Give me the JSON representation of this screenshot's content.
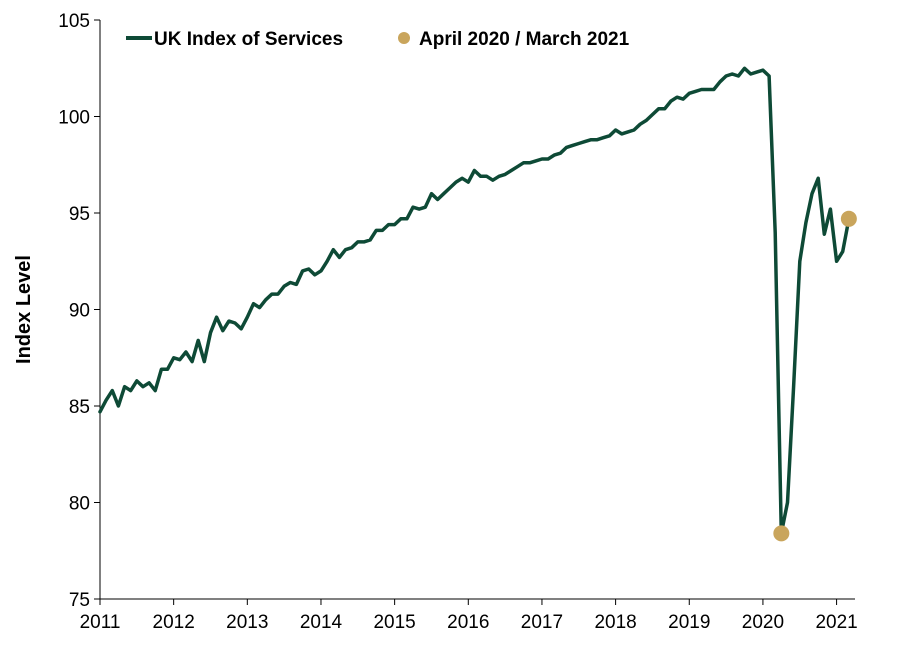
{
  "chart_data": {
    "type": "line",
    "ylabel": "Index Level",
    "xlabel": "",
    "ylim": [
      75,
      105
    ],
    "yticks": [
      75,
      80,
      85,
      90,
      95,
      100,
      105
    ],
    "xlim": [
      2011,
      2021.25
    ],
    "xticks": [
      "2011",
      "2012",
      "2013",
      "2014",
      "2015",
      "2016",
      "2017",
      "2018",
      "2019",
      "2020",
      "2021"
    ],
    "grid": false,
    "legend_position": "top",
    "colors": {
      "series": "#0e4a36",
      "highlight": "#c9a55c"
    },
    "series": [
      {
        "name": "UK Index of Services",
        "x_start": "2011-01",
        "frequency": "monthly",
        "values": [
          84.7,
          85.3,
          85.8,
          85.0,
          86.0,
          85.8,
          86.3,
          86.0,
          86.2,
          85.8,
          86.9,
          86.9,
          87.5,
          87.4,
          87.8,
          87.3,
          88.4,
          87.3,
          88.8,
          89.6,
          88.9,
          89.4,
          89.3,
          89.0,
          89.6,
          90.3,
          90.1,
          90.5,
          90.8,
          90.8,
          91.2,
          91.4,
          91.3,
          92.0,
          92.1,
          91.8,
          92.0,
          92.5,
          93.1,
          92.7,
          93.1,
          93.2,
          93.5,
          93.5,
          93.6,
          94.1,
          94.1,
          94.4,
          94.4,
          94.7,
          94.7,
          95.3,
          95.2,
          95.3,
          96.0,
          95.7,
          96.0,
          96.3,
          96.6,
          96.8,
          96.6,
          97.2,
          96.9,
          96.9,
          96.7,
          96.9,
          97.0,
          97.2,
          97.4,
          97.6,
          97.6,
          97.7,
          97.8,
          97.8,
          98.0,
          98.1,
          98.4,
          98.5,
          98.6,
          98.7,
          98.8,
          98.8,
          98.9,
          99.0,
          99.3,
          99.1,
          99.2,
          99.3,
          99.6,
          99.8,
          100.1,
          100.4,
          100.4,
          100.8,
          101.0,
          100.9,
          101.2,
          101.3,
          101.4,
          101.4,
          101.4,
          101.8,
          102.1,
          102.2,
          102.1,
          102.5,
          102.2,
          102.3,
          102.4,
          102.1,
          94.0,
          78.4,
          80.0,
          86.0,
          92.5,
          94.5,
          96.0,
          96.8,
          93.9,
          95.2,
          92.5,
          93.0,
          94.7
        ]
      },
      {
        "name": "April 2020 / March 2021",
        "points": [
          {
            "x": "2020-04",
            "y": 78.4
          },
          {
            "x": "2021-03",
            "y": 94.7
          }
        ]
      }
    ]
  }
}
